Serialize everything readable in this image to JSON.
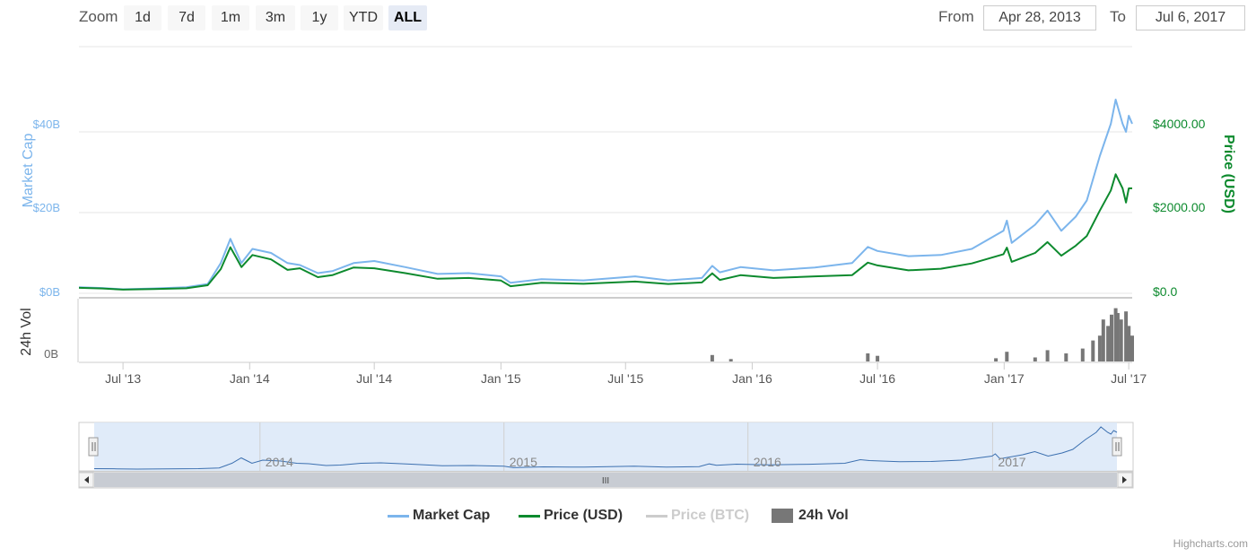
{
  "zoom": {
    "label": "Zoom",
    "buttons": [
      {
        "label": "1d",
        "active": false
      },
      {
        "label": "7d",
        "active": false
      },
      {
        "label": "1m",
        "active": false
      },
      {
        "label": "3m",
        "active": false
      },
      {
        "label": "1y",
        "active": false
      },
      {
        "label": "YTD",
        "active": false
      },
      {
        "label": "ALL",
        "active": true
      }
    ]
  },
  "range": {
    "from_label": "From",
    "from_value": "Apr 28, 2013",
    "to_label": "To",
    "to_value": "Jul 6, 2017"
  },
  "chart_data": {
    "type": "line",
    "title": "",
    "x_range": [
      "2013-04-28",
      "2017-07-06"
    ],
    "yAxisLeft": {
      "label": "Market Cap",
      "ticks": [
        "$0B",
        "$20B",
        "$40B"
      ],
      "range": [
        0,
        40
      ]
    },
    "yAxisRight": {
      "label": "Price (USD)",
      "ticks": [
        "$0.0",
        "$2000.00",
        "$4000.00"
      ],
      "range": [
        0,
        4000
      ]
    },
    "volumeAxis": {
      "label": "24h Vol",
      "ticks": [
        "0B"
      ]
    },
    "xTicks": [
      "Jul '13",
      "Jan '14",
      "Jul '14",
      "Jan '15",
      "Jul '15",
      "Jan '16",
      "Jul '16",
      "Jan '17",
      "Jul '17"
    ],
    "navigatorLabels": [
      "2014",
      "2015",
      "2016",
      "2017"
    ],
    "grid": true,
    "legend_position": "bottom",
    "series": [
      {
        "name": "Market Cap",
        "color": "#7cb5ec",
        "unit": "$B",
        "points": [
          [
            "2013-04-28",
            1.5
          ],
          [
            "2013-06-01",
            1.3
          ],
          [
            "2013-07-01",
            1.0
          ],
          [
            "2013-08-15",
            1.2
          ],
          [
            "2013-10-01",
            1.5
          ],
          [
            "2013-11-01",
            2.3
          ],
          [
            "2013-11-20",
            7.5
          ],
          [
            "2013-12-04",
            13.5
          ],
          [
            "2013-12-12",
            10.5
          ],
          [
            "2013-12-20",
            7.5
          ],
          [
            "2014-01-05",
            11.0
          ],
          [
            "2014-02-01",
            10.0
          ],
          [
            "2014-02-25",
            7.5
          ],
          [
            "2014-03-15",
            7.0
          ],
          [
            "2014-04-10",
            5.0
          ],
          [
            "2014-05-01",
            5.5
          ],
          [
            "2014-06-01",
            7.5
          ],
          [
            "2014-07-01",
            8.0
          ],
          [
            "2014-08-15",
            6.5
          ],
          [
            "2014-10-01",
            4.8
          ],
          [
            "2014-11-15",
            5.0
          ],
          [
            "2015-01-01",
            4.2
          ],
          [
            "2015-01-15",
            2.6
          ],
          [
            "2015-03-01",
            3.5
          ],
          [
            "2015-05-01",
            3.2
          ],
          [
            "2015-07-15",
            4.2
          ],
          [
            "2015-09-01",
            3.2
          ],
          [
            "2015-10-20",
            3.8
          ],
          [
            "2015-11-04",
            6.8
          ],
          [
            "2015-11-15",
            5.2
          ],
          [
            "2015-12-15",
            6.5
          ],
          [
            "2016-02-01",
            5.7
          ],
          [
            "2016-04-01",
            6.4
          ],
          [
            "2016-05-25",
            7.5
          ],
          [
            "2016-06-17",
            11.5
          ],
          [
            "2016-07-01",
            10.5
          ],
          [
            "2016-08-15",
            9.2
          ],
          [
            "2016-10-01",
            9.5
          ],
          [
            "2016-11-15",
            11.0
          ],
          [
            "2016-12-31",
            15.5
          ],
          [
            "2017-01-05",
            18.0
          ],
          [
            "2017-01-12",
            12.5
          ],
          [
            "2017-02-15",
            17.0
          ],
          [
            "2017-03-05",
            20.5
          ],
          [
            "2017-03-25",
            15.5
          ],
          [
            "2017-04-15",
            19.0
          ],
          [
            "2017-05-01",
            23.0
          ],
          [
            "2017-05-20",
            34.0
          ],
          [
            "2017-06-05",
            42.0
          ],
          [
            "2017-06-12",
            48.0
          ],
          [
            "2017-06-22",
            42.0
          ],
          [
            "2017-06-27",
            40.0
          ],
          [
            "2017-07-01",
            44.0
          ],
          [
            "2017-07-06",
            42.0
          ]
        ]
      },
      {
        "name": "Price (USD)",
        "color": "#0d8a2e",
        "unit": "USD",
        "points": [
          [
            "2013-04-28",
            135
          ],
          [
            "2013-06-01",
            120
          ],
          [
            "2013-07-01",
            90
          ],
          [
            "2013-08-15",
            105
          ],
          [
            "2013-10-01",
            125
          ],
          [
            "2013-11-01",
            200
          ],
          [
            "2013-11-20",
            600
          ],
          [
            "2013-12-04",
            1140
          ],
          [
            "2013-12-12",
            900
          ],
          [
            "2013-12-20",
            650
          ],
          [
            "2014-01-05",
            950
          ],
          [
            "2014-02-01",
            840
          ],
          [
            "2014-02-25",
            580
          ],
          [
            "2014-03-15",
            620
          ],
          [
            "2014-04-10",
            400
          ],
          [
            "2014-05-01",
            450
          ],
          [
            "2014-06-01",
            640
          ],
          [
            "2014-07-01",
            620
          ],
          [
            "2014-08-15",
            500
          ],
          [
            "2014-10-01",
            360
          ],
          [
            "2014-11-15",
            380
          ],
          [
            "2015-01-01",
            315
          ],
          [
            "2015-01-15",
            175
          ],
          [
            "2015-03-01",
            260
          ],
          [
            "2015-05-01",
            235
          ],
          [
            "2015-07-15",
            290
          ],
          [
            "2015-09-01",
            230
          ],
          [
            "2015-10-20",
            270
          ],
          [
            "2015-11-04",
            495
          ],
          [
            "2015-11-15",
            330
          ],
          [
            "2015-12-15",
            450
          ],
          [
            "2016-02-01",
            380
          ],
          [
            "2016-04-01",
            420
          ],
          [
            "2016-05-25",
            450
          ],
          [
            "2016-06-17",
            760
          ],
          [
            "2016-07-01",
            690
          ],
          [
            "2016-08-15",
            570
          ],
          [
            "2016-10-01",
            610
          ],
          [
            "2016-11-15",
            740
          ],
          [
            "2016-12-31",
            970
          ],
          [
            "2017-01-05",
            1130
          ],
          [
            "2017-01-12",
            780
          ],
          [
            "2017-02-15",
            1000
          ],
          [
            "2017-03-05",
            1270
          ],
          [
            "2017-03-25",
            930
          ],
          [
            "2017-04-15",
            1180
          ],
          [
            "2017-05-01",
            1420
          ],
          [
            "2017-05-20",
            2050
          ],
          [
            "2017-06-05",
            2550
          ],
          [
            "2017-06-12",
            2950
          ],
          [
            "2017-06-22",
            2600
          ],
          [
            "2017-06-27",
            2250
          ],
          [
            "2017-07-01",
            2600
          ],
          [
            "2017-07-06",
            2600
          ]
        ]
      },
      {
        "name": "Price (BTC)",
        "color": "#cccccc",
        "visible": false,
        "points": []
      },
      {
        "name": "24h Vol",
        "color": "#777777",
        "type": "column",
        "points": [
          [
            "2015-11-04",
            0.4
          ],
          [
            "2015-12-01",
            0.15
          ],
          [
            "2016-06-17",
            0.5
          ],
          [
            "2016-07-01",
            0.35
          ],
          [
            "2016-12-20",
            0.2
          ],
          [
            "2017-01-05",
            0.6
          ],
          [
            "2017-02-15",
            0.25
          ],
          [
            "2017-03-05",
            0.7
          ],
          [
            "2017-04-01",
            0.5
          ],
          [
            "2017-04-25",
            0.8
          ],
          [
            "2017-05-10",
            1.3
          ],
          [
            "2017-05-20",
            1.6
          ],
          [
            "2017-05-25",
            2.6
          ],
          [
            "2017-06-01",
            2.2
          ],
          [
            "2017-06-06",
            2.9
          ],
          [
            "2017-06-12",
            3.3
          ],
          [
            "2017-06-15",
            3.0
          ],
          [
            "2017-06-20",
            2.6
          ],
          [
            "2017-06-27",
            3.1
          ],
          [
            "2017-07-01",
            2.2
          ],
          [
            "2017-07-06",
            1.6
          ]
        ]
      }
    ]
  },
  "legend": [
    {
      "label": "Market Cap",
      "color": "#7cb5ec",
      "symbol": "line",
      "hidden": false
    },
    {
      "label": "Price (USD)",
      "color": "#0d8a2e",
      "symbol": "line",
      "hidden": false
    },
    {
      "label": "Price (BTC)",
      "color": "#cccccc",
      "symbol": "line",
      "hidden": true
    },
    {
      "label": "24h Vol",
      "color": "#777777",
      "symbol": "box",
      "hidden": false
    }
  ],
  "navigator": {
    "scroll_grip": "III"
  },
  "credits": "Highcharts.com"
}
